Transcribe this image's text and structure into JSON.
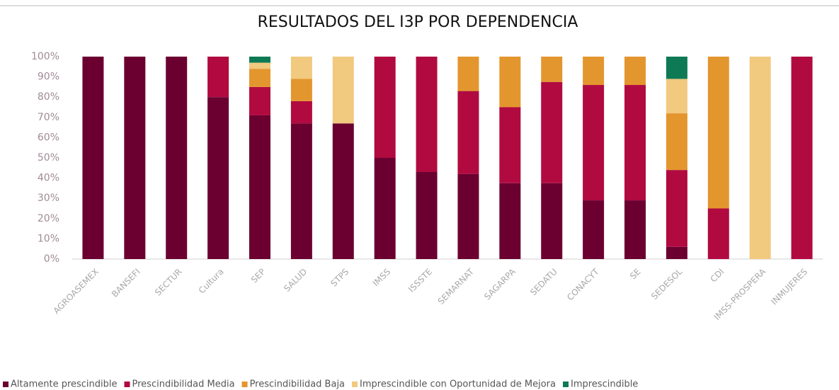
{
  "chart_data": {
    "type": "stacked_bar",
    "title": "RESULTADOS DEL I3P POR DEPENDENCIA",
    "categories": [
      "AGROASEMEX",
      "BANSEFI",
      "SECTUR",
      "Cultura",
      "SEP",
      "SALUD",
      "STPS",
      "IMSS",
      "ISSSTE",
      "SEMARNAT",
      "SAGARPA",
      "SEDATU",
      "CONACYT",
      "SE",
      "SEDESOL",
      "CDI",
      "IMSS-PROSPERA",
      "INMUJERES"
    ],
    "series": [
      {
        "name": "Altamente prescindible",
        "color": "#6b0030",
        "values": [
          100,
          100,
          100,
          80,
          71,
          67,
          67,
          50,
          43,
          42,
          37.5,
          37.5,
          29,
          29,
          6,
          0,
          0,
          0
        ]
      },
      {
        "name": "Prescindibilidad Media",
        "color": "#b10a40",
        "values": [
          0,
          0,
          0,
          20,
          14,
          11,
          0,
          50,
          57,
          41,
          37.5,
          50,
          57,
          57,
          38,
          25,
          0,
          100
        ]
      },
      {
        "name": "Prescindibilidad Baja",
        "color": "#e3962e",
        "values": [
          0,
          0,
          0,
          0,
          9,
          11,
          0,
          0,
          0,
          17,
          25,
          12.5,
          14,
          14,
          28,
          75,
          0,
          0
        ]
      },
      {
        "name": "Imprescindible con Oportunidad de Mejora",
        "color": "#f1c97f",
        "values": [
          0,
          0,
          0,
          0,
          3,
          11,
          33,
          0,
          0,
          0,
          0,
          0,
          0,
          0,
          17,
          0,
          100,
          0
        ]
      },
      {
        "name": "Imprescindible",
        "color": "#0e7a55",
        "values": [
          0,
          0,
          0,
          0,
          3,
          0,
          0,
          0,
          0,
          0,
          0,
          0,
          0,
          0,
          11,
          0,
          0,
          0
        ]
      }
    ],
    "ylim": [
      0,
      100
    ],
    "yticks": [
      {
        "value": 0,
        "label": "0%"
      },
      {
        "value": 10,
        "label": "10%"
      },
      {
        "value": 20,
        "label": "20%"
      },
      {
        "value": 30,
        "label": "30%"
      },
      {
        "value": 40,
        "label": "40%"
      },
      {
        "value": 50,
        "label": "50%"
      },
      {
        "value": 60,
        "label": "60%"
      },
      {
        "value": 70,
        "label": "70%"
      },
      {
        "value": 80,
        "label": "80%"
      },
      {
        "value": 90,
        "label": "90%"
      },
      {
        "value": 100,
        "label": "100%"
      }
    ],
    "legend": "bottom"
  }
}
